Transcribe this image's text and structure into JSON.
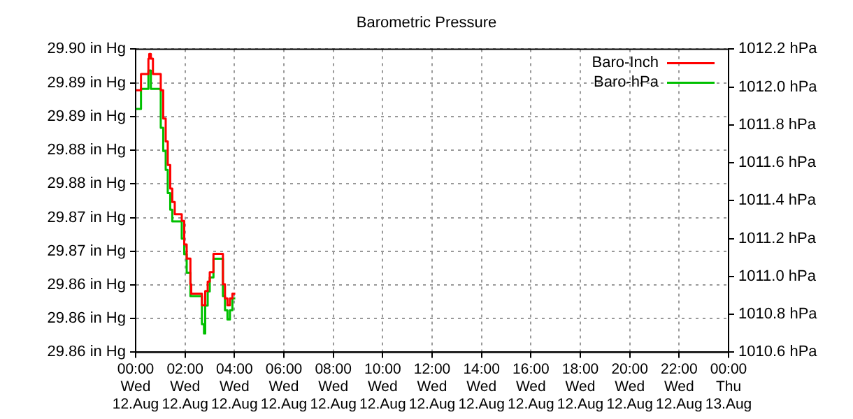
{
  "chart_data": {
    "type": "step",
    "title": "Barometric Pressure",
    "x": [
      "--08-12T00:01",
      "--08-12T00:13",
      "--08-12T00:28",
      "--08-12T00:31",
      "--08-12T00:33",
      "--08-12T00:37",
      "--08-12T00:42",
      "--08-12T00:55",
      "--08-12T01:01",
      "--08-12T01:07",
      "--08-12T01:13",
      "--08-12T01:18",
      "--08-12T01:24",
      "--08-12T01:29",
      "--08-12T01:35",
      "--08-12T01:50",
      "--08-12T01:52",
      "--08-12T01:58",
      "--08-12T02:04",
      "--08-12T02:13",
      "--08-12T02:15",
      "--08-12T02:37",
      "--08-12T02:41",
      "--08-12T02:46",
      "--08-12T02:49",
      "--08-12T02:55",
      "--08-12T03:00",
      "--08-12T03:09",
      "--08-12T03:26",
      "--08-12T03:32",
      "--08-12T03:37",
      "--08-12T03:43",
      "--08-12T03:49",
      "--08-12T03:55",
      "--08-12T04:02"
    ],
    "series": [
      {
        "name": "Baro-Inch",
        "color": "#ff0000",
        "axis": "y",
        "values": [
          29.8939,
          29.8963,
          29.8963,
          29.8986,
          29.8993,
          29.8986,
          29.8963,
          29.8963,
          29.8939,
          29.8897,
          29.8863,
          29.8828,
          29.8793,
          29.8773,
          29.8755,
          29.8755,
          29.8745,
          29.871,
          29.8689,
          29.8651,
          29.8637,
          29.8637,
          29.862,
          29.862,
          29.8641,
          29.8655,
          29.8669,
          29.8696,
          29.8696,
          29.8651,
          29.863,
          29.862,
          29.863,
          29.8637,
          29.8637
        ]
      },
      {
        "name": "Baro-hPa",
        "color": "#00c000",
        "axis": "y2",
        "values": [
          1011.884,
          1011.99,
          1011.99,
          1012.087,
          1012.087,
          1011.99,
          1011.99,
          1011.99,
          1011.785,
          1011.662,
          1011.563,
          1011.44,
          1011.353,
          1011.291,
          1011.291,
          1011.291,
          1011.2,
          1011.118,
          1011.02,
          1010.896,
          1010.896,
          1010.896,
          1010.748,
          1010.699,
          1010.847,
          1010.921,
          1010.995,
          1011.094,
          1011.094,
          1010.896,
          1010.822,
          1010.773,
          1010.822,
          1010.884,
          1010.884
        ]
      }
    ],
    "xlim": [
      "--08-12T00:00",
      "--08-13T00:00"
    ],
    "xticks": [
      {
        "value": "--08-12T00:00",
        "label": "00:00\nWed\n12.Aug"
      },
      {
        "value": "--08-12T02:00",
        "label": "02:00\nWed\n12.Aug"
      },
      {
        "value": "--08-12T04:00",
        "label": "04:00\nWed\n12.Aug"
      },
      {
        "value": "--08-12T06:00",
        "label": "06:00\nWed\n12.Aug"
      },
      {
        "value": "--08-12T08:00",
        "label": "08:00\nWed\n12.Aug"
      },
      {
        "value": "--08-12T10:00",
        "label": "10:00\nWed\n12.Aug"
      },
      {
        "value": "--08-12T12:00",
        "label": "12:00\nWed\n12.Aug"
      },
      {
        "value": "--08-12T14:00",
        "label": "14:00\nWed\n12.Aug"
      },
      {
        "value": "--08-12T16:00",
        "label": "16:00\nWed\n12.Aug"
      },
      {
        "value": "--08-12T18:00",
        "label": "18:00\nWed\n12.Aug"
      },
      {
        "value": "--08-12T20:00",
        "label": "20:00\nWed\n12.Aug"
      },
      {
        "value": "--08-12T22:00",
        "label": "22:00\nWed\n12.Aug"
      },
      {
        "value": "--08-13T00:00",
        "label": "00:00\nThu\n13.Aug"
      }
    ],
    "ylim": [
      29.855,
      29.9
    ],
    "yticks": [
      {
        "value": 29.9,
        "label": "29.90 in Hg"
      },
      {
        "value": 29.895,
        "label": "29.89 in Hg"
      },
      {
        "value": 29.89,
        "label": "29.89 in Hg"
      },
      {
        "value": 29.885,
        "label": "29.88 in Hg"
      },
      {
        "value": 29.88,
        "label": "29.88 in Hg"
      },
      {
        "value": 29.875,
        "label": "29.87 in Hg"
      },
      {
        "value": 29.87,
        "label": "29.87 in Hg"
      },
      {
        "value": 29.865,
        "label": "29.86 in Hg"
      },
      {
        "value": 29.86,
        "label": "29.86 in Hg"
      },
      {
        "value": 29.855,
        "label": "29.86 in Hg"
      }
    ],
    "y2lim": [
      1010.6,
      1012.2
    ],
    "y2ticks": [
      {
        "value": 1010.6,
        "label": "1010.6 hPa"
      },
      {
        "value": 1010.8,
        "label": "1010.8 hPa"
      },
      {
        "value": 1011.0,
        "label": "1011.0 hPa"
      },
      {
        "value": 1011.2,
        "label": "1011.2 hPa"
      },
      {
        "value": 1011.4,
        "label": "1011.4 hPa"
      },
      {
        "value": 1011.6,
        "label": "1011.6 hPa"
      },
      {
        "value": 1011.8,
        "label": "1011.8 hPa"
      },
      {
        "value": 1012.0,
        "label": "1012.0 hPa"
      },
      {
        "value": 1012.2,
        "label": "1012.2 hPa"
      }
    ],
    "grid": true,
    "legend": "top right",
    "line_style": "solid",
    "marker": "none"
  }
}
